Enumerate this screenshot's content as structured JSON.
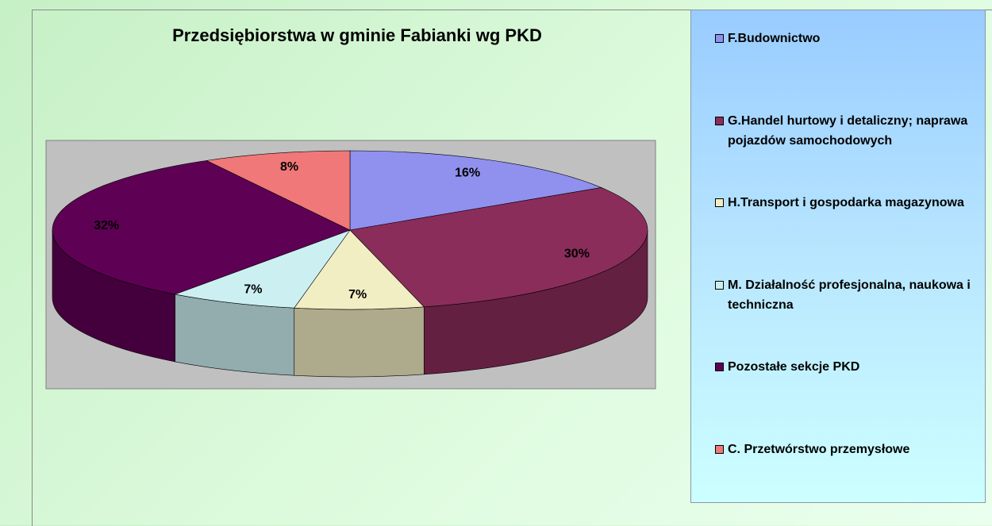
{
  "chart_data": {
    "type": "pie",
    "title": "Przedsiębiorstwa w gminie Fabianki wg PKD",
    "categories": [
      "F.Budownictwo",
      "G.Handel hurtowy i detaliczny; naprawa pojazdów samochodowych",
      "H.Transport i gospodarka magazynowa",
      "M. Działalność profesjonalna, naukowa i techniczna",
      "Pozostałe sekcje PKD",
      "C. Przetwórstwo przemysłowe"
    ],
    "values": [
      16,
      30,
      7,
      7,
      32,
      8
    ],
    "value_labels": [
      "16%",
      "30%",
      "7%",
      "7%",
      "32%",
      "8%"
    ],
    "colors": [
      "#9090ee",
      "#8b2d5a",
      "#f2eec4",
      "#cceff2",
      "#5e0054",
      "#f07878"
    ],
    "legend": "right"
  }
}
